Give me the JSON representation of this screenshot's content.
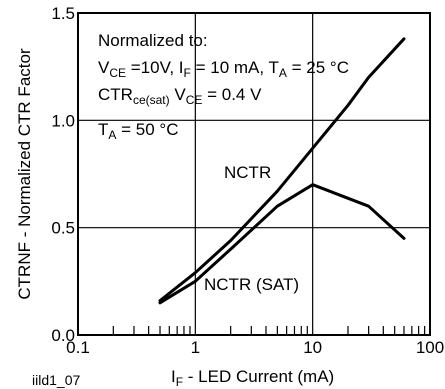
{
  "chart_data": {
    "type": "line",
    "xlabel": {
      "main": "I",
      "sub": "F",
      "rest": " - LED Current (mA)"
    },
    "ylabel": "CTRNF - Normalized CTR Factor",
    "xscale": "log",
    "xlim": [
      0.1,
      100
    ],
    "ylim": [
      0.0,
      1.5
    ],
    "x_ticks": [
      0.1,
      1,
      10,
      100
    ],
    "x_tick_labels": [
      "0.1",
      "1",
      "10",
      "100"
    ],
    "y_ticks": [
      0.0,
      0.5,
      1.0,
      1.5
    ],
    "y_tick_labels": [
      "0.0",
      "0.5",
      "1.0",
      "1.5"
    ],
    "grid": true,
    "figure_id": "iild1_07",
    "annotations": {
      "line1": "Normalized to:",
      "line2": {
        "p1": "V",
        "s1": "CE",
        "p2": " =10V, I",
        "s2": "F",
        "p3": " = 10 mA, T",
        "s3": "A",
        "p4": " = 25 °C"
      },
      "line3": {
        "p1": "CTR",
        "s1": "ce(sat)",
        "p2": " V",
        "s2": "CE",
        "p3": " = 0.4 V"
      },
      "line4": {
        "p1": "T",
        "s1": "A",
        "p2": " = 50 °C"
      }
    },
    "series": [
      {
        "name": "NCTR",
        "x": [
          0.5,
          1,
          2,
          5,
          10,
          20,
          30,
          60
        ],
        "y": [
          0.16,
          0.29,
          0.44,
          0.67,
          0.87,
          1.07,
          1.2,
          1.38
        ]
      },
      {
        "name": "NCTR (SAT)",
        "x": [
          0.5,
          1,
          2,
          5,
          10,
          30,
          60
        ],
        "y": [
          0.15,
          0.25,
          0.4,
          0.6,
          0.7,
          0.6,
          0.45
        ]
      }
    ]
  }
}
